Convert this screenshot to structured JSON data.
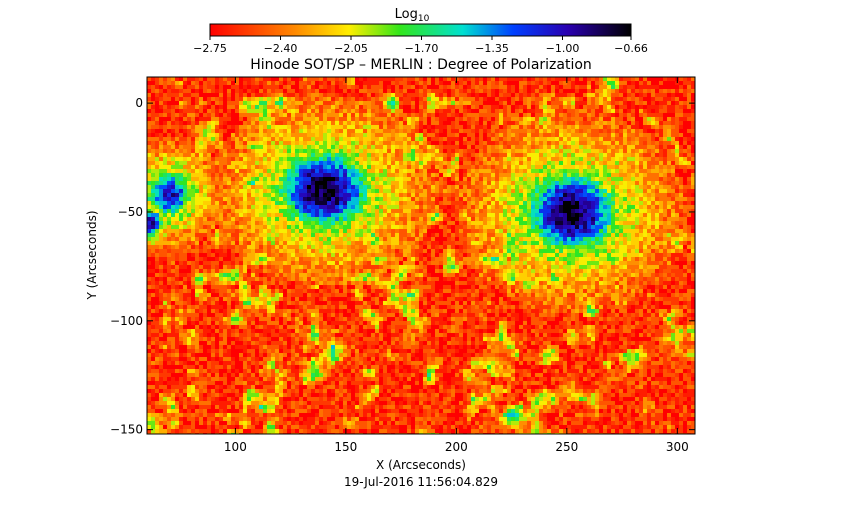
{
  "chart_data": {
    "type": "heatmap",
    "title": "Hinode SOT/SP – MERLIN : Degree of Polarization",
    "xlabel": "X (Arcseconds)",
    "ylabel": "Y (Arcseconds)",
    "timestamp": "19-Jul-2016 11:56:04.829",
    "xlim": [
      60,
      308
    ],
    "ylim": [
      -152,
      12
    ],
    "xticks": [
      100,
      150,
      200,
      250,
      300
    ],
    "yticks": [
      0,
      -50,
      -100,
      -150
    ],
    "xtick_labels": [
      "100",
      "150",
      "200",
      "250",
      "300"
    ],
    "ytick_labels": [
      "0",
      "−50",
      "−100",
      "−150"
    ],
    "colorbar": {
      "label_main": "Log",
      "label_sub": "10",
      "range": [
        -2.75,
        -0.66
      ],
      "colormap": "rainbow",
      "ticks": [
        -2.75,
        -2.4,
        -2.05,
        -1.7,
        -1.35,
        -1.0,
        -0.66
      ],
      "tick_labels": [
        "−2.75",
        "−2.40",
        "−2.05",
        "−1.70",
        "−1.35",
        "−1.00",
        "−0.66"
      ]
    },
    "features": [
      {
        "kind": "sunspot",
        "cx": 140,
        "cy": -40,
        "rx": 20,
        "ry": 17,
        "peak": -0.7
      },
      {
        "kind": "sunspot",
        "cx": 252,
        "cy": -50,
        "rx": 20,
        "ry": 18,
        "peak": -0.72
      },
      {
        "kind": "pore",
        "cx": 70,
        "cy": -42,
        "rx": 10,
        "ry": 10,
        "peak": -1.0
      },
      {
        "kind": "pore",
        "cx": 62,
        "cy": -55,
        "rx": 5,
        "ry": 6,
        "peak": -0.9
      }
    ],
    "background_level": -2.6,
    "grid": false,
    "legend": "colorbar-top"
  }
}
